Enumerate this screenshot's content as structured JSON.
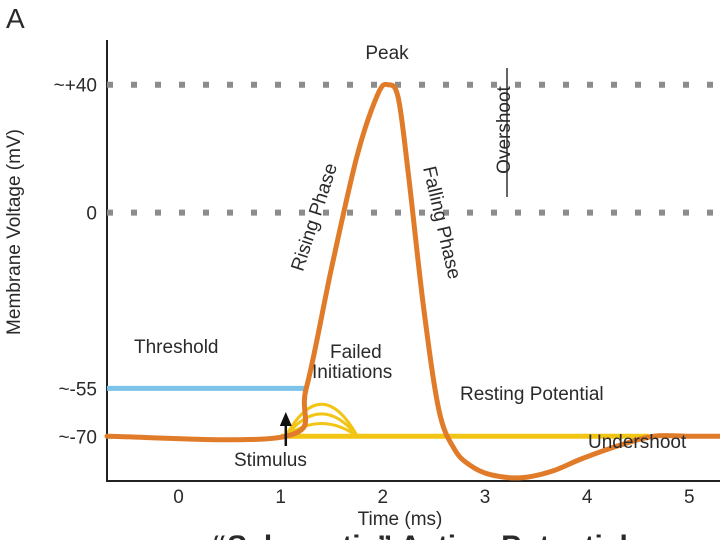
{
  "panel_label": "A",
  "chart_data": {
    "type": "line",
    "xlabel": "Time (ms)",
    "ylabel": "Membrane Voltage (mV)",
    "xlim": [
      -0.7,
      5.3
    ],
    "ylim": [
      -84,
      54
    ],
    "x_ticks": [
      0,
      1,
      2,
      3,
      4,
      5
    ],
    "y_ticks": [
      {
        "value": 40,
        "label": "~+40"
      },
      {
        "value": 0,
        "label": "0"
      },
      {
        "value": -55,
        "label": "~-55"
      },
      {
        "value": -70,
        "label": "~-70"
      }
    ],
    "reference_lines": [
      {
        "value": 40,
        "style": "dotted"
      },
      {
        "value": 0,
        "style": "dotted"
      }
    ],
    "series": [
      {
        "role": "action potential",
        "color": "#e07b2a",
        "x": [
          -0.7,
          1.05,
          1.25,
          1.5,
          1.75,
          1.95,
          2.05,
          2.15,
          2.25,
          2.4,
          2.55,
          2.7,
          2.85,
          3.05,
          3.35,
          3.65,
          3.95,
          4.3,
          4.65,
          5.0,
          5.3
        ],
        "y": [
          -70,
          -70,
          -55,
          -17,
          18,
          37,
          40,
          36,
          12,
          -30,
          -62,
          -74,
          -79,
          -82,
          -83,
          -81,
          -77,
          -73,
          -70,
          -70,
          -70
        ]
      },
      {
        "role": "resting potential",
        "color": "#f2c414",
        "x": [
          1.0,
          4.6
        ],
        "y": [
          -70,
          -70
        ]
      }
    ],
    "failed_initiations": [
      {
        "peak": -60
      },
      {
        "peak": -63
      },
      {
        "peak": -66
      }
    ],
    "threshold_line": {
      "value": -55,
      "x_start": -0.7,
      "x_end": 1.25,
      "color": "#7cc3e8"
    },
    "stimulus_x": 1.05,
    "annotations": {
      "peak": "Peak",
      "rising": "Rising Phase",
      "falling": "Falling Phase",
      "overshoot": "Overshoot",
      "threshold": "Threshold",
      "failed_line1": "Failed",
      "failed_line2": "Initiations",
      "resting": "Resting Potential",
      "undershoot": "Undershoot",
      "stimulus": "Stimulus"
    },
    "partial_title": "“Schematic” Action Potential"
  }
}
